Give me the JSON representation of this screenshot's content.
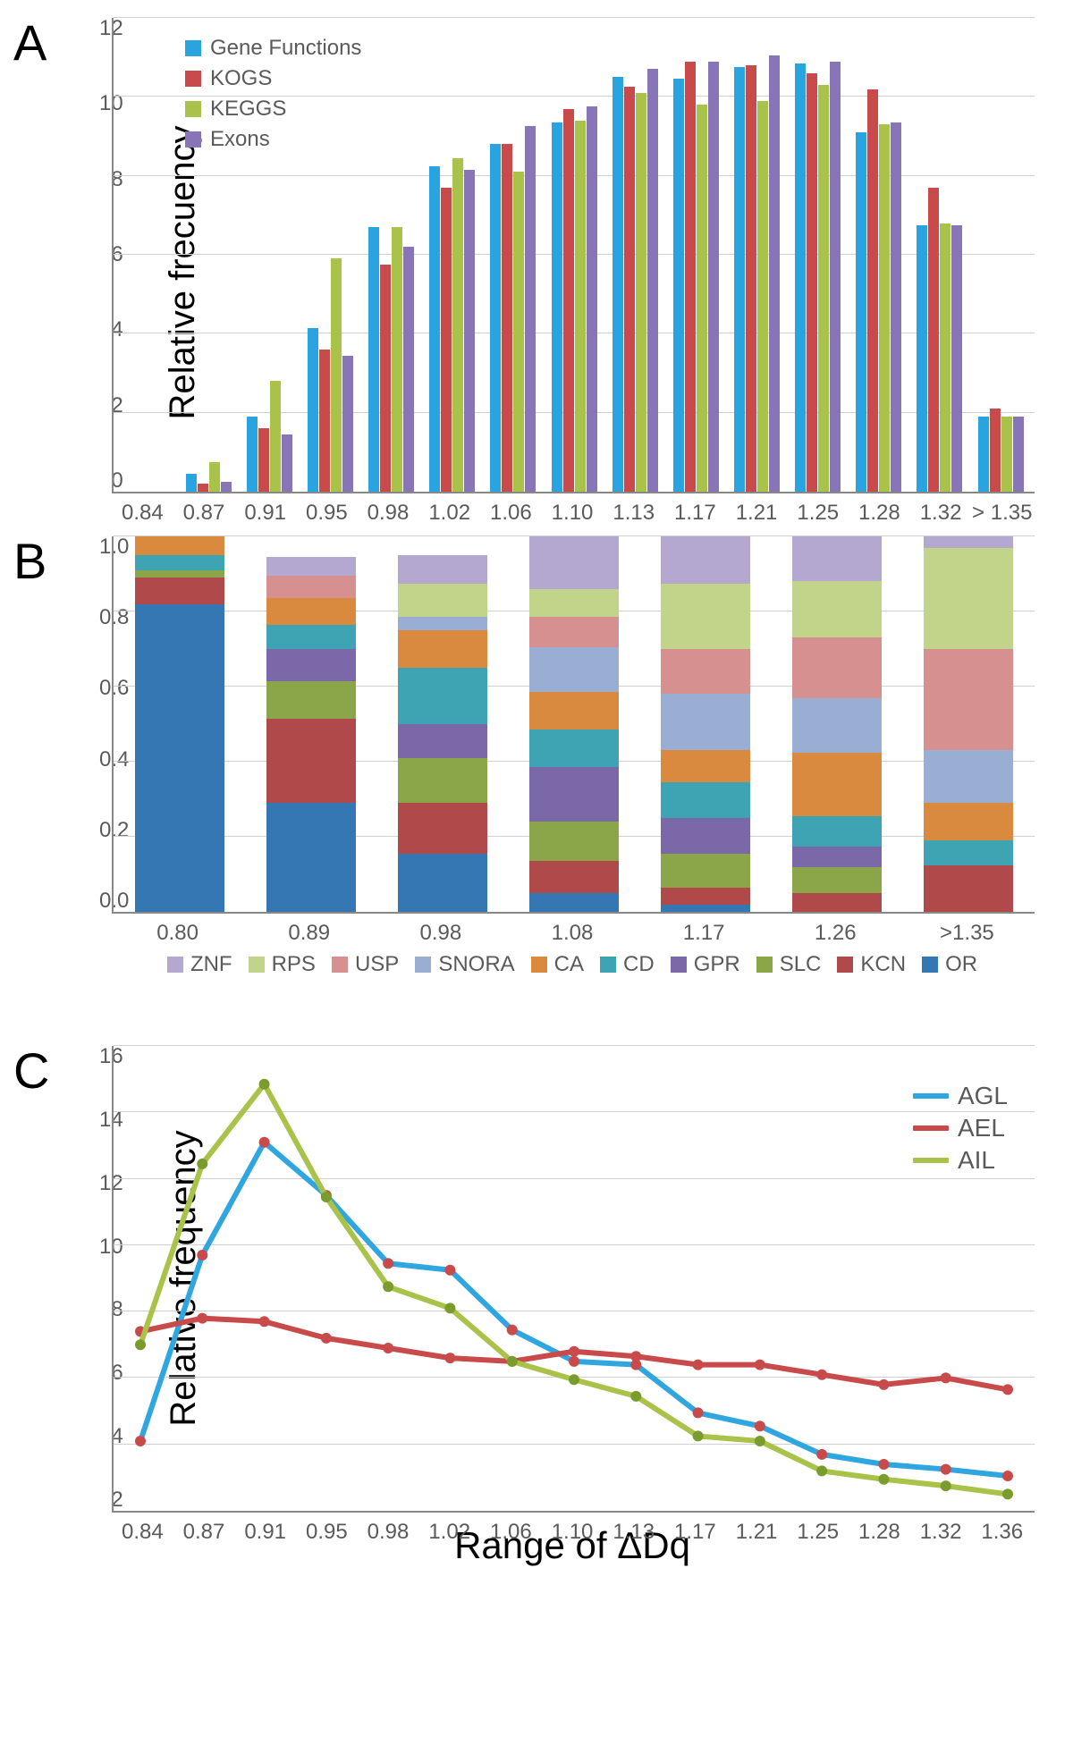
{
  "panelA": {
    "label": "A",
    "ylabel": "Relative frecuency",
    "ylim": [
      0,
      12
    ],
    "y_tick_step": 2,
    "categories": [
      "0.84",
      "0.87",
      "0.91",
      "0.95",
      "0.98",
      "1.02",
      "1.06",
      "1.10",
      "1.13",
      "1.17",
      "1.21",
      "1.25",
      "1.28",
      "1.32",
      "> 1.35"
    ],
    "series": [
      {
        "name": "Gene Functions",
        "color": "#2aa4e0",
        "values": [
          0,
          0.45,
          1.9,
          4.15,
          6.7,
          8.25,
          8.8,
          9.35,
          10.5,
          10.45,
          10.75,
          10.85,
          9.1,
          6.75,
          1.9
        ]
      },
      {
        "name": "KOGS",
        "color": "#c84a4a",
        "values": [
          0,
          0.2,
          1.6,
          3.6,
          5.75,
          7.7,
          8.8,
          9.7,
          10.25,
          10.9,
          10.8,
          10.6,
          10.2,
          7.7,
          2.1
        ]
      },
      {
        "name": "KEGGS",
        "color": "#a9c24a",
        "values": [
          0,
          0.75,
          2.8,
          5.9,
          6.7,
          8.45,
          8.1,
          9.4,
          10.1,
          9.8,
          9.9,
          10.3,
          9.3,
          6.8,
          1.9
        ]
      },
      {
        "name": "Exons",
        "color": "#8875b8",
        "values": [
          0,
          0.25,
          1.45,
          3.45,
          6.2,
          8.15,
          9.25,
          9.75,
          10.7,
          10.9,
          11.05,
          10.9,
          9.35,
          6.75,
          1.9
        ]
      }
    ]
  },
  "panelB": {
    "label": "B",
    "ylabel": "Relative frecuency",
    "ylim": [
      0,
      1
    ],
    "y_tick_step": 0.2,
    "categories": [
      "0.80",
      "0.89",
      "0.98",
      "1.08",
      "1.17",
      "1.26",
      ">1.35"
    ],
    "series_order": [
      "OR",
      "KCN",
      "SLC",
      "GPR",
      "CD",
      "CA",
      "SNORA",
      "USP",
      "RPS",
      "ZNF"
    ],
    "colors": {
      "OR": "#3477b2",
      "KCN": "#b04a4a",
      "SLC": "#8aa648",
      "GPR": "#7a68a8",
      "CD": "#3ea3b2",
      "CA": "#d98a3e",
      "SNORA": "#9aaed4",
      "USP": "#d69090",
      "RPS": "#c1d48a",
      "ZNF": "#b4a8d0"
    },
    "stacks": [
      {
        "OR": 0.82,
        "KCN": 0.07,
        "SLC": 0.02,
        "GPR": 0.0,
        "CD": 0.04,
        "CA": 0.05,
        "SNORA": 0.0,
        "USP": 0.0,
        "RPS": 0.0,
        "ZNF": 0.0
      },
      {
        "OR": 0.29,
        "KCN": 0.225,
        "SLC": 0.1,
        "GPR": 0.085,
        "CD": 0.065,
        "CA": 0.07,
        "SNORA": 0.0,
        "USP": 0.06,
        "RPS": 0.0,
        "ZNF": 0.05
      },
      {
        "OR": 0.155,
        "KCN": 0.135,
        "SLC": 0.12,
        "GPR": 0.09,
        "CD": 0.15,
        "CA": 0.1,
        "SNORA": 0.035,
        "USP": 0.0,
        "RPS": 0.09,
        "ZNF": 0.075
      },
      {
        "OR": 0.05,
        "KCN": 0.085,
        "SLC": 0.105,
        "GPR": 0.145,
        "CD": 0.1,
        "CA": 0.1,
        "SNORA": 0.12,
        "USP": 0.08,
        "RPS": 0.075,
        "ZNF": 0.14
      },
      {
        "OR": 0.02,
        "KCN": 0.045,
        "SLC": 0.09,
        "GPR": 0.095,
        "CD": 0.095,
        "CA": 0.085,
        "SNORA": 0.15,
        "USP": 0.12,
        "RPS": 0.175,
        "ZNF": 0.125
      },
      {
        "OR": 0.0,
        "KCN": 0.05,
        "SLC": 0.07,
        "GPR": 0.055,
        "CD": 0.08,
        "CA": 0.17,
        "SNORA": 0.145,
        "USP": 0.16,
        "RPS": 0.15,
        "ZNF": 0.12
      },
      {
        "OR": 0.0,
        "KCN": 0.125,
        "SLC": 0.0,
        "GPR": 0.0,
        "CD": 0.065,
        "CA": 0.1,
        "SNORA": 0.14,
        "USP": 0.27,
        "RPS": 0.27,
        "ZNF": 0.03
      }
    ]
  },
  "panelC": {
    "label": "C",
    "ylabel": "Relative frequency",
    "xlabel": "Range of ΔDq",
    "ylim": [
      2,
      16
    ],
    "y_tick_step": 2,
    "categories": [
      "0.84",
      "0.87",
      "0.91",
      "0.95",
      "0.98",
      "1.02",
      "1.06",
      "1.10",
      "1.13",
      "1.17",
      "1.21",
      "1.25",
      "1.28",
      "1.32",
      "1.36"
    ],
    "series": [
      {
        "name": "AGL",
        "color": "#2fa6e0",
        "marker_fill": "#c84a4a",
        "values": [
          4.1,
          9.7,
          13.1,
          11.5,
          9.45,
          9.25,
          7.45,
          6.5,
          6.4,
          4.95,
          4.55,
          3.7,
          3.4,
          3.25,
          3.05
        ]
      },
      {
        "name": "AEL",
        "color": "#c84a4a",
        "marker_fill": "#c84a4a",
        "values": [
          7.4,
          7.8,
          7.7,
          7.2,
          6.9,
          6.6,
          6.5,
          6.8,
          6.65,
          6.4,
          6.4,
          6.1,
          5.8,
          6.0,
          5.65
        ]
      },
      {
        "name": "AIL",
        "color": "#a9c24a",
        "marker_fill": "#7a9c2e",
        "values": [
          7.0,
          12.45,
          14.85,
          11.45,
          8.75,
          8.1,
          6.5,
          5.95,
          5.45,
          4.25,
          4.1,
          3.2,
          2.95,
          2.75,
          2.5
        ]
      }
    ],
    "line_width": 6,
    "marker_radius": 6
  }
}
